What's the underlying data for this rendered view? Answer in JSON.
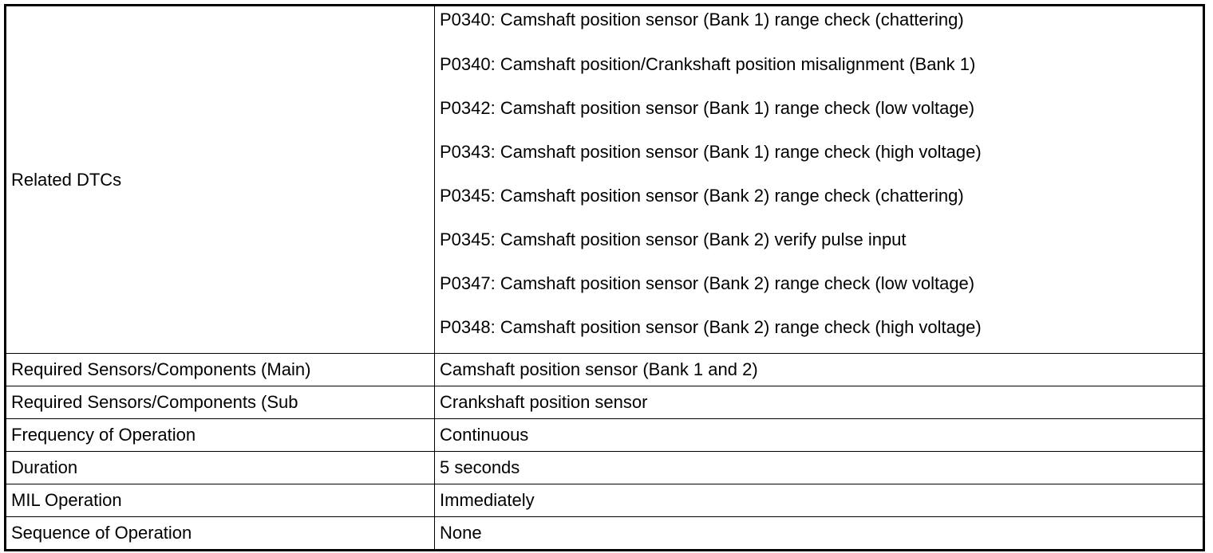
{
  "table": {
    "related_dtcs": {
      "label": "Related DTCs",
      "codes": [
        "P0340: Camshaft position sensor (Bank 1) range check (chattering)",
        "P0340: Camshaft position/Crankshaft position misalignment (Bank 1)",
        "P0342: Camshaft position sensor (Bank 1) range check (low voltage)",
        "P0343: Camshaft position sensor (Bank 1) range check (high voltage)",
        "P0345: Camshaft position sensor (Bank 2) range check (chattering)",
        "P0345: Camshaft position sensor (Bank 2) verify pulse input",
        "P0347: Camshaft position sensor (Bank 2) range check (low voltage)",
        "P0348: Camshaft position sensor (Bank 2) range check (high voltage)"
      ]
    },
    "rows": [
      {
        "label": "Required Sensors/Components (Main)",
        "value": "Camshaft position sensor (Bank 1 and 2)"
      },
      {
        "label": "Required Sensors/Components (Sub",
        "value": "Crankshaft position sensor"
      },
      {
        "label": "Frequency of Operation",
        "value": "Continuous"
      },
      {
        "label": "Duration",
        "value": "5 seconds"
      },
      {
        "label": "MIL Operation",
        "value": "Immediately"
      },
      {
        "label": "Sequence of Operation",
        "value": "None"
      }
    ]
  }
}
